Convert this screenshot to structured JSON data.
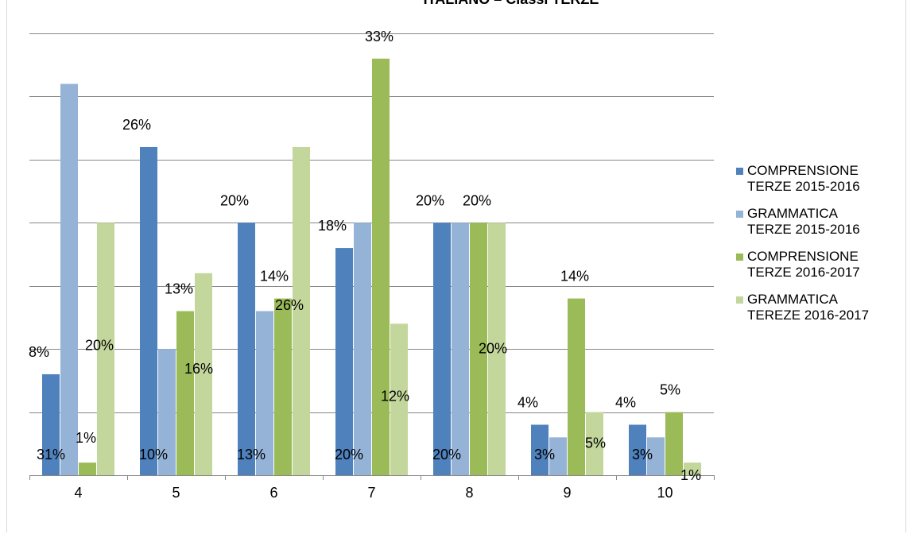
{
  "chart_data": {
    "type": "bar",
    "title": "ITALIANO – Classi TERZE",
    "categories": [
      "4",
      "5",
      "6",
      "7",
      "8",
      "9",
      "10"
    ],
    "series": [
      {
        "name": "COMPRENSIONE TERZE 2015-2016",
        "color": "#4f81bd",
        "values": [
          8,
          26,
          20,
          18,
          20,
          4,
          4
        ],
        "labels": [
          "8%",
          "26%",
          "20%",
          "18%",
          "20%",
          "4%",
          "4%"
        ]
      },
      {
        "name": "GRAMMATICA TERZE 2015-2016",
        "color": "#95b3d7",
        "values": [
          31,
          10,
          13,
          20,
          20,
          3,
          3
        ],
        "labels": [
          "31%",
          "10%",
          "13%",
          "20%",
          "20%",
          "3%",
          "3%"
        ]
      },
      {
        "name": "COMPRENSIONE TERZE 2016-2017",
        "color": "#9bbb59",
        "values": [
          1,
          13,
          14,
          33,
          20,
          14,
          5
        ],
        "labels": [
          "1%",
          "13%",
          "14%",
          "33%",
          "20%",
          "14%",
          "5%"
        ]
      },
      {
        "name": "GRAMMATICA TEREZE 2016-2017",
        "color": "#c3d69b",
        "values": [
          20,
          16,
          26,
          12,
          20,
          5,
          1
        ],
        "labels": [
          "20%",
          "16%",
          "26%",
          "12%",
          "20%",
          "5%",
          "1%"
        ]
      }
    ],
    "ylim": [
      0,
      35
    ],
    "y_gridline_step": 5,
    "y_tick_labels_shown": false,
    "grid": true,
    "legend_position": "right",
    "legend": [
      {
        "line1": "COMPRENSIONE",
        "line2": "TERZE 2015-2016"
      },
      {
        "line1": "GRAMMATICA",
        "line2": "TERZE 2015-2016"
      },
      {
        "line1": "COMPRENSIONE",
        "line2": "TERZE 2016-2017"
      },
      {
        "line1": "GRAMMATICA",
        "line2": "TEREZE 2016-2017"
      }
    ]
  }
}
